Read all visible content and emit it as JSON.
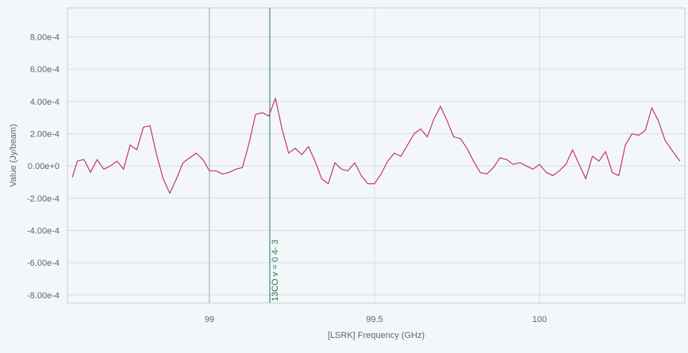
{
  "chart_data": {
    "type": "line",
    "xlabel": "[LSRK] Frequency (GHz)",
    "ylabel": "Value (Jy/beam)",
    "xlim": [
      98.57,
      100.44
    ],
    "ylim": [
      -0.00085,
      0.00098
    ],
    "x_ticks": [
      {
        "value": 99,
        "label": "99"
      },
      {
        "value": 99.5,
        "label": "99.5"
      },
      {
        "value": 100,
        "label": "100"
      }
    ],
    "y_ticks": [
      {
        "value": 0.0008,
        "label": "8.00e-4"
      },
      {
        "value": 0.0006,
        "label": "6.00e-4"
      },
      {
        "value": 0.0004,
        "label": "4.00e-4"
      },
      {
        "value": 0.0002,
        "label": "2.00e-4"
      },
      {
        "value": 0,
        "label": "0.00e+0"
      },
      {
        "value": -0.0002,
        "label": "-2.00e-4"
      },
      {
        "value": -0.0004,
        "label": "-4.00e-4"
      },
      {
        "value": -0.0006,
        "label": "-6.00e-4"
      },
      {
        "value": -0.0008,
        "label": "-8.00e-4"
      }
    ],
    "grid": true,
    "colors": {
      "series": "#c2386a",
      "annotation": "#1f7a4a",
      "grid": "#d8dde2",
      "cursor": "#c8ccd1"
    },
    "cursor_x": 99.0,
    "annotation": {
      "x": 99.183,
      "label": "13CO v = 0 4- 3"
    },
    "series": [
      {
        "x": [
          98.585,
          98.6,
          98.62,
          98.64,
          98.66,
          98.68,
          98.7,
          98.72,
          98.74,
          98.76,
          98.78,
          98.8,
          98.82,
          98.84,
          98.86,
          98.88,
          98.9,
          98.92,
          98.94,
          98.96,
          98.98,
          99.0,
          99.02,
          99.04,
          99.06,
          99.08,
          99.1,
          99.12,
          99.14,
          99.16,
          99.18,
          99.2,
          99.22,
          99.24,
          99.26,
          99.28,
          99.3,
          99.32,
          99.34,
          99.36,
          99.38,
          99.4,
          99.42,
          99.44,
          99.46,
          99.48,
          99.5,
          99.52,
          99.54,
          99.56,
          99.58,
          99.6,
          99.62,
          99.64,
          99.66,
          99.68,
          99.7,
          99.72,
          99.74,
          99.76,
          99.78,
          99.8,
          99.82,
          99.84,
          99.86,
          99.88,
          99.9,
          99.92,
          99.94,
          99.96,
          99.98,
          100.0,
          100.02,
          100.04,
          100.06,
          100.08,
          100.1,
          100.12,
          100.14,
          100.16,
          100.18,
          100.2,
          100.22,
          100.24,
          100.26,
          100.28,
          100.3,
          100.32,
          100.34,
          100.36,
          100.38,
          100.4,
          100.425
        ],
        "y": [
          -7e-05,
          3e-05,
          4e-05,
          -4e-05,
          4e-05,
          -2e-05,
          0.0,
          3e-05,
          -2e-05,
          0.00013,
          0.0001,
          0.00024,
          0.00025,
          7e-05,
          -8e-05,
          -0.00017,
          -8e-05,
          2e-05,
          5e-05,
          8e-05,
          4e-05,
          -3e-05,
          -3e-05,
          -5e-05,
          -4e-05,
          -2e-05,
          -1e-05,
          0.00014,
          0.00032,
          0.00033,
          0.00031,
          0.00042,
          0.00023,
          8e-05,
          0.00011,
          7e-05,
          0.00012,
          3e-05,
          -8e-05,
          -0.00011,
          2e-05,
          -2e-05,
          -3e-05,
          2e-05,
          -6e-05,
          -0.00011,
          -0.00011,
          -5e-05,
          3e-05,
          8e-05,
          6e-05,
          0.00013,
          0.0002,
          0.00023,
          0.00018,
          0.00029,
          0.00037,
          0.00028,
          0.00018,
          0.00017,
          0.00011,
          3e-05,
          -4e-05,
          -5e-05,
          -1e-05,
          5e-05,
          4e-05,
          1e-05,
          2e-05,
          0.0,
          -2e-05,
          1e-05,
          -4e-05,
          -6e-05,
          -3e-05,
          1e-05,
          0.0001,
          1e-05,
          -8e-05,
          6e-05,
          3e-05,
          9e-05,
          -4e-05,
          -6e-05,
          0.00013,
          0.0002,
          0.00019,
          0.00022,
          0.00036,
          0.00028,
          0.00016,
          0.0001,
          3e-05
        ]
      }
    ]
  }
}
